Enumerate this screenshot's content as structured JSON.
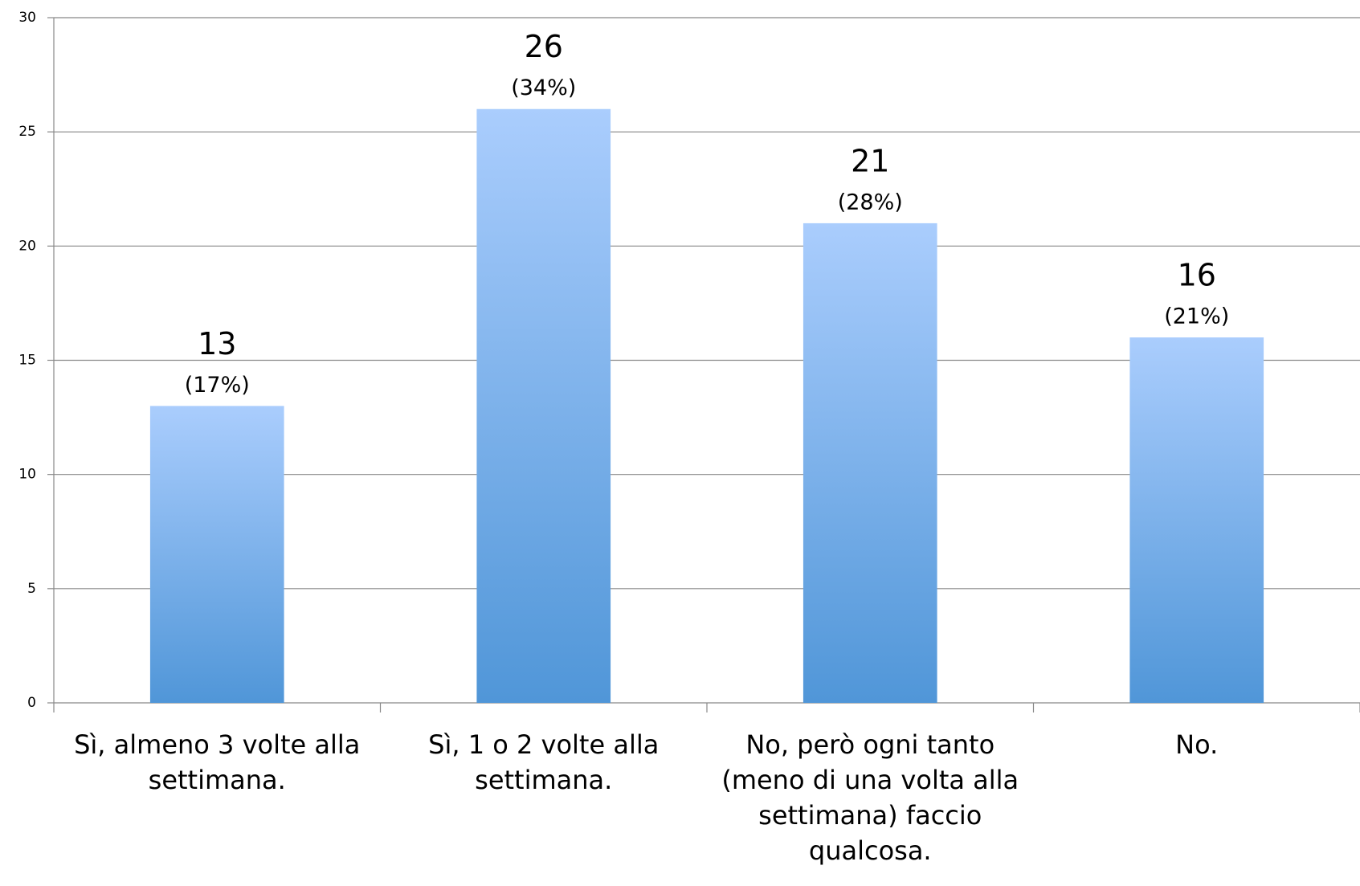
{
  "chart_data": {
    "type": "bar",
    "categories": [
      "Sì, almeno 3 volte alla settimana.",
      "Sì, 1 o 2 volte alla settimana.",
      "No, però ogni tanto (meno di una volta alla settimana) faccio qualcosa.",
      "No."
    ],
    "values": [
      13,
      26,
      21,
      16
    ],
    "percent_labels": [
      "(17%)",
      "(34%)",
      "(28%)",
      "(21%)"
    ],
    "color": "#5096d8",
    "ylim": [
      0,
      30
    ],
    "yticks": [
      0,
      5,
      10,
      15,
      20,
      25,
      30
    ],
    "grid": true
  }
}
